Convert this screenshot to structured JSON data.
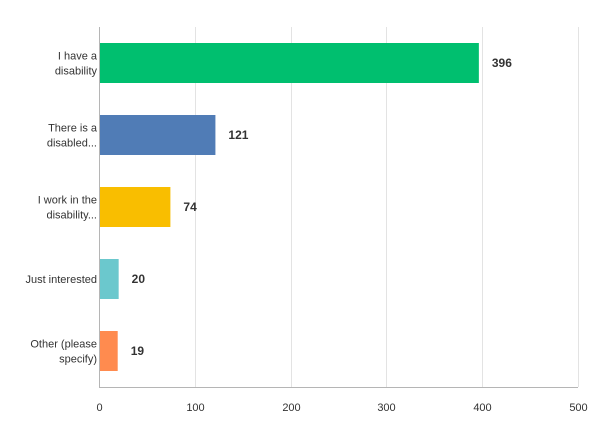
{
  "chart_data": {
    "type": "bar",
    "orientation": "horizontal",
    "categories": [
      [
        "I have a",
        "disability"
      ],
      [
        "There is a",
        "disabled..."
      ],
      [
        "I work in the",
        "disability..."
      ],
      [
        "Just interested"
      ],
      [
        "Other (please",
        "specify)"
      ]
    ],
    "values": [
      396,
      121,
      74,
      20,
      19
    ],
    "colors": [
      "#00bf6f",
      "#507cb6",
      "#f9be00",
      "#6bc8cd",
      "#ff8b4f"
    ],
    "xlim": [
      0,
      500
    ],
    "xticks": [
      0,
      100,
      200,
      300,
      400,
      500
    ],
    "grid": true,
    "legend": "none"
  }
}
